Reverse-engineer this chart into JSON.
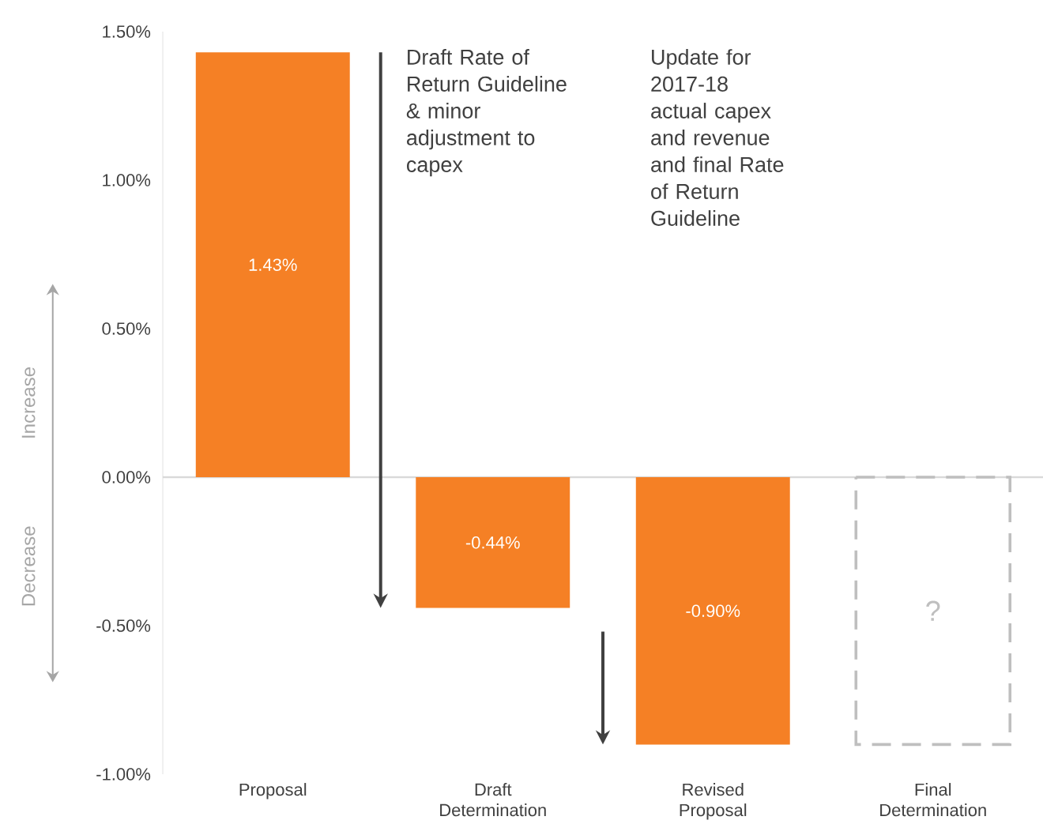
{
  "chart_data": {
    "type": "bar",
    "categories": [
      "Proposal",
      "Draft Determination",
      "Revised Proposal",
      "Final Determination"
    ],
    "series": [
      {
        "color": "#f58025",
        "values": [
          1.43,
          -0.44,
          -0.9,
          null
        ],
        "value_labels": [
          "1.43%",
          "-0.44%",
          "-0.90%",
          null
        ]
      },
      {
        "color": "#bfbfbf",
        "line_style": "dashed",
        "values": [
          null,
          null,
          null,
          -0.9
        ],
        "value_labels": [
          null,
          null,
          null,
          "?"
        ]
      }
    ],
    "ylim": [
      -1,
      1.5
    ],
    "yticks": [
      {
        "value": -1,
        "label": "-1.00%"
      },
      {
        "value": -0.5,
        "label": "-0.50%"
      },
      {
        "value": 0,
        "label": "0.00%"
      },
      {
        "value": 0.5,
        "label": "0.50%"
      },
      {
        "value": 1,
        "label": "1.00%"
      },
      {
        "value": 1.5,
        "label": "1.50%"
      }
    ],
    "annotations": [
      "Draft Rate of Return Guideline & minor adjustment to capex",
      "Update for 2017-18 actual capex and revenue and final Rate of Return Guideline",
      "Increase",
      "Decrease"
    ]
  }
}
